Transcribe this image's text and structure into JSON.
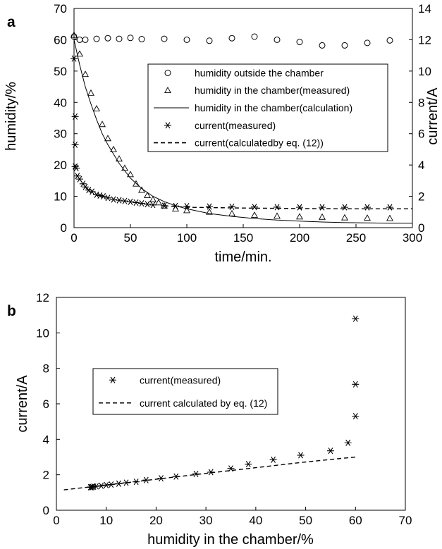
{
  "chart_data": [
    {
      "panel_label": "a",
      "type": "scatter",
      "xlabel": "time/min.",
      "ylabel": "humidity/%",
      "y2label": "current/A",
      "xlim": [
        0,
        300
      ],
      "ylim": [
        0,
        70
      ],
      "y2lim": [
        0,
        14
      ],
      "xticks": [
        "0",
        "50",
        "100",
        "150",
        "200",
        "250",
        "300"
      ],
      "yticks": [
        "0",
        "10",
        "20",
        "30",
        "40",
        "50",
        "60",
        "70"
      ],
      "y2ticks": [
        "0",
        "2",
        "4",
        "6",
        "8",
        "10",
        "12",
        "14"
      ],
      "legend_position": "center-right",
      "series": [
        {
          "name": "humidity outside the chamber",
          "marker": "circle",
          "axis": "left",
          "x": [
            0,
            5,
            10,
            20,
            30,
            40,
            50,
            60,
            80,
            100,
            120,
            140,
            160,
            180,
            200,
            220,
            240,
            260,
            280
          ],
          "y": [
            61,
            60,
            60,
            60.3,
            60.5,
            60.3,
            60.6,
            60.2,
            60.3,
            60,
            59.7,
            60.5,
            61,
            60,
            59.3,
            58.2,
            58.2,
            59,
            59.8
          ]
        },
        {
          "name": "humidity in the chamber(measured)",
          "marker": "triangle",
          "axis": "left",
          "x": [
            0,
            5,
            10,
            15,
            20,
            25,
            30,
            35,
            40,
            45,
            50,
            55,
            60,
            65,
            70,
            75,
            80,
            90,
            100,
            120,
            140,
            160,
            180,
            200,
            220,
            240,
            260,
            280
          ],
          "y": [
            61.5,
            55.5,
            49,
            43,
            38,
            33,
            28.5,
            25,
            22,
            19,
            17,
            14,
            12,
            10.3,
            9,
            8,
            7,
            6,
            5.5,
            5,
            4.5,
            4,
            3.7,
            3.5,
            3.4,
            3.2,
            3.1,
            3
          ]
        },
        {
          "name": "humidity in the chamber(calculation)",
          "line": "solid",
          "axis": "left",
          "x": [
            0,
            5,
            10,
            15,
            20,
            25,
            30,
            40,
            50,
            60,
            70,
            80,
            90,
            100,
            120,
            140,
            160,
            180,
            200,
            220,
            240,
            260,
            280,
            300
          ],
          "y": [
            60,
            52,
            45,
            39.5,
            34.5,
            30,
            26.5,
            20.5,
            15.8,
            12.5,
            10,
            8.3,
            7,
            6,
            4.5,
            3.6,
            2.9,
            2.4,
            2.1,
            1.8,
            1.6,
            1.5,
            1.4,
            1.4
          ]
        },
        {
          "name": "current(measured)",
          "marker": "asterisk",
          "axis": "right",
          "x": [
            0,
            1,
            1,
            1,
            2,
            3,
            5,
            8,
            10,
            13,
            16,
            20,
            23,
            26,
            30,
            35,
            40,
            45,
            50,
            55,
            60,
            65,
            70,
            80,
            90,
            100,
            120,
            140,
            160,
            180,
            200,
            220,
            240,
            260,
            280
          ],
          "y": [
            10.8,
            7.1,
            5.3,
            3.9,
            3.8,
            3.3,
            3.1,
            2.8,
            2.6,
            2.4,
            2.3,
            2.1,
            2.05,
            2.0,
            1.9,
            1.8,
            1.75,
            1.7,
            1.65,
            1.6,
            1.55,
            1.5,
            1.45,
            1.4,
            1.38,
            1.37,
            1.35,
            1.33,
            1.32,
            1.31,
            1.3,
            1.3,
            1.3,
            1.3,
            1.3
          ]
        },
        {
          "name": "current(calculatedby eq. (12))",
          "line": "dashed",
          "axis": "right",
          "x": [
            80,
            100,
            150,
            200,
            250,
            300
          ],
          "y": [
            1.4,
            1.3,
            1.25,
            1.22,
            1.2,
            1.2
          ]
        }
      ]
    },
    {
      "panel_label": "b",
      "type": "scatter",
      "xlabel": "humidity in the chamber/%",
      "ylabel": "current/A",
      "xlim": [
        0,
        70
      ],
      "ylim": [
        0,
        12
      ],
      "xticks": [
        "0",
        "10",
        "20",
        "30",
        "40",
        "50",
        "60",
        "70"
      ],
      "yticks": [
        "0",
        "2",
        "4",
        "6",
        "8",
        "10",
        "12"
      ],
      "legend_position": "center-left",
      "series": [
        {
          "name": "current(measured)",
          "marker": "asterisk",
          "x": [
            60,
            60,
            60,
            58.5,
            55,
            49,
            43.5,
            38.5,
            35,
            31,
            28,
            24,
            21,
            18,
            16,
            14,
            12.5,
            11,
            10,
            9,
            8,
            7.5,
            7.2,
            7,
            6.8
          ],
          "y": [
            10.8,
            7.1,
            5.3,
            3.8,
            3.35,
            3.1,
            2.85,
            2.6,
            2.35,
            2.15,
            2.05,
            1.9,
            1.8,
            1.7,
            1.6,
            1.55,
            1.5,
            1.45,
            1.42,
            1.38,
            1.35,
            1.33,
            1.31,
            1.3,
            1.3
          ]
        },
        {
          "name": "current calculated by eq. (12)",
          "line": "dashed",
          "x": [
            1.5,
            10,
            20,
            30,
            40,
            50,
            60
          ],
          "y": [
            1.15,
            1.42,
            1.75,
            2.08,
            2.4,
            2.72,
            3.0
          ]
        }
      ]
    }
  ]
}
